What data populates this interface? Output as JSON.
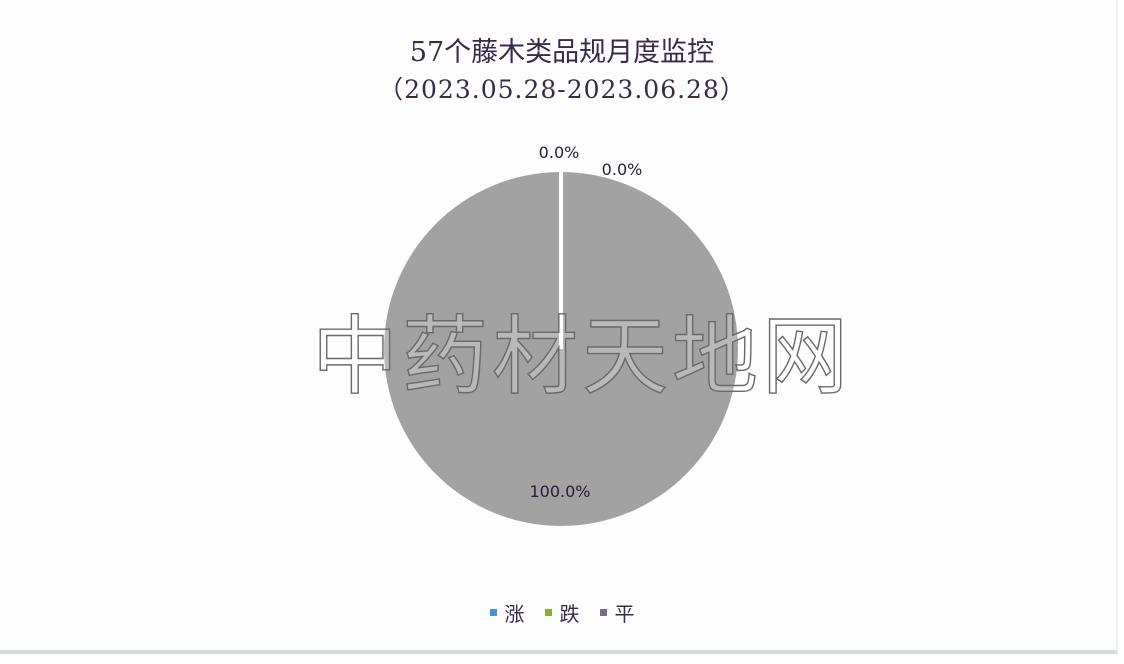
{
  "chart_data": {
    "type": "pie",
    "title": "57个藤木类品规月度监控",
    "subtitle": "（2023.05.28-2023.06.28）",
    "categories": [
      "涨",
      "跌",
      "平"
    ],
    "values": [
      0.0,
      0.0,
      100.0
    ],
    "labels": [
      "0.0%",
      "0.0%",
      "100.0%"
    ],
    "colors": [
      "#4a8fe0",
      "#8ab030",
      "#a2a2a2"
    ],
    "legend_colors": [
      "#4a8fe0",
      "#8ab030",
      "#7a6a8a"
    ],
    "legend": "bottom"
  },
  "watermark": "中药材天地网"
}
